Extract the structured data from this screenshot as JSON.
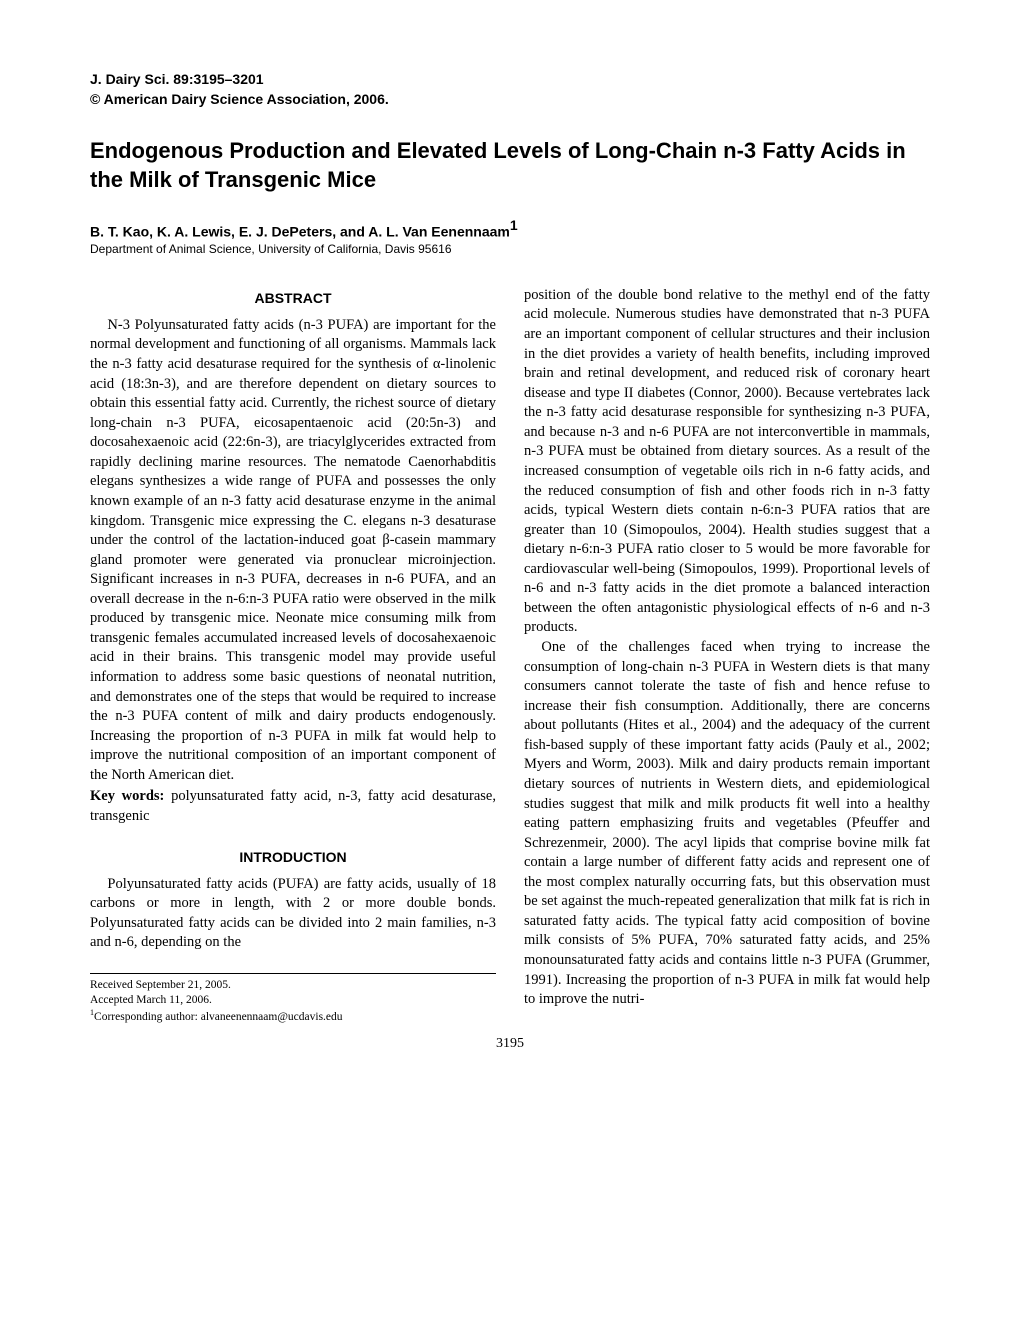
{
  "journal": {
    "citation": "J. Dairy Sci. 89:3195–3201",
    "copyright": "© American Dairy Science Association, 2006."
  },
  "title": "Endogenous Production and Elevated Levels of Long-Chain n-3 Fatty Acids in the Milk of Transgenic Mice",
  "authors": "B. T. Kao, K. A. Lewis, E. J. DePeters, and A. L. Van Eenennaam",
  "author_sup": "1",
  "affiliation": "Department of Animal Science, University of California, Davis 95616",
  "abstract_heading": "ABSTRACT",
  "abstract_text": "N-3 Polyunsaturated fatty acids (n-3 PUFA) are important for the normal development and functioning of all organisms. Mammals lack the n-3 fatty acid desaturase required for the synthesis of α-linolenic acid (18:3n-3), and are therefore dependent on dietary sources to obtain this essential fatty acid. Currently, the richest source of dietary long-chain n-3 PUFA, eicosapentaenoic acid (20:5n-3) and docosahexaenoic acid (22:6n-3), are triacylglycerides extracted from rapidly declining marine resources. The nematode Caenorhabditis elegans synthesizes a wide range of PUFA and possesses the only known example of an n-3 fatty acid desaturase enzyme in the animal kingdom. Transgenic mice expressing the C. elegans n-3 desaturase under the control of the lactation-induced goat β-casein mammary gland promoter were generated via pronuclear microinjection. Significant increases in n-3 PUFA, decreases in n-6 PUFA, and an overall decrease in the n-6:n-3 PUFA ratio were observed in the milk produced by transgenic mice. Neonate mice consuming milk from transgenic females accumulated increased levels of docosahexaenoic acid in their brains. This transgenic model may provide useful information to address some basic questions of neonatal nutrition, and demonstrates one of the steps that would be required to increase the n-3 PUFA content of milk and dairy products endogenously. Increasing the proportion of n-3 PUFA in milk fat would help to improve the nutritional composition of an important component of the North American diet.",
  "keywords_label": "Key words:",
  "keywords_text": " polyunsaturated fatty acid, n-3, fatty acid desaturase, transgenic",
  "intro_heading": "INTRODUCTION",
  "intro_p1": "Polyunsaturated fatty acids (PUFA) are fatty acids, usually of 18 carbons or more in length, with 2 or more double bonds. Polyunsaturated fatty acids can be divided into 2 main families, n-3 and n-6, depending on the",
  "col2_p1": "position of the double bond relative to the methyl end of the fatty acid molecule. Numerous studies have demonstrated that n-3 PUFA are an important component of cellular structures and their inclusion in the diet provides a variety of health benefits, including improved brain and retinal development, and reduced risk of coronary heart disease and type II diabetes (Connor, 2000). Because vertebrates lack the n-3 fatty acid desaturase responsible for synthesizing n-3 PUFA, and because n-3 and n-6 PUFA are not interconvertible in mammals, n-3 PUFA must be obtained from dietary sources. As a result of the increased consumption of vegetable oils rich in n-6 fatty acids, and the reduced consumption of fish and other foods rich in n-3 fatty acids, typical Western diets contain n-6:n-3 PUFA ratios that are greater than 10 (Simopoulos, 2004). Health studies suggest that a dietary n-6:n-3 PUFA ratio closer to 5 would be more favorable for cardiovascular well-being (Simopoulos, 1999). Proportional levels of n-6 and n-3 fatty acids in the diet promote a balanced interaction between the often antagonistic physiological effects of n-6 and n-3 products.",
  "col2_p2": "One of the challenges faced when trying to increase the consumption of long-chain n-3 PUFA in Western diets is that many consumers cannot tolerate the taste of fish and hence refuse to increase their fish consumption. Additionally, there are concerns about pollutants (Hites et al., 2004) and the adequacy of the current fish-based supply of these important fatty acids (Pauly et al., 2002; Myers and Worm, 2003). Milk and dairy products remain important dietary sources of nutrients in Western diets, and epidemiological studies suggest that milk and milk products fit well into a healthy eating pattern emphasizing fruits and vegetables (Pfeuffer and Schrezenmeir, 2000). The acyl lipids that comprise bovine milk fat contain a large number of different fatty acids and represent one of the most complex naturally occurring fats, but this observation must be set against the much-repeated generalization that milk fat is rich in saturated fatty acids. The typical fatty acid composition of bovine milk consists of 5% PUFA, 70% saturated fatty acids, and 25% monounsaturated fatty acids and contains little n-3 PUFA (Grummer, 1991). Increasing the proportion of n-3 PUFA in milk fat would help to improve the nutri-",
  "footnotes": {
    "received": "Received September 21, 2005.",
    "accepted": "Accepted March 11, 2006.",
    "corresponding": "Corresponding author: alvaneenennaam@ucdavis.edu",
    "corresponding_sup": "1"
  },
  "page_number": "3195"
}
